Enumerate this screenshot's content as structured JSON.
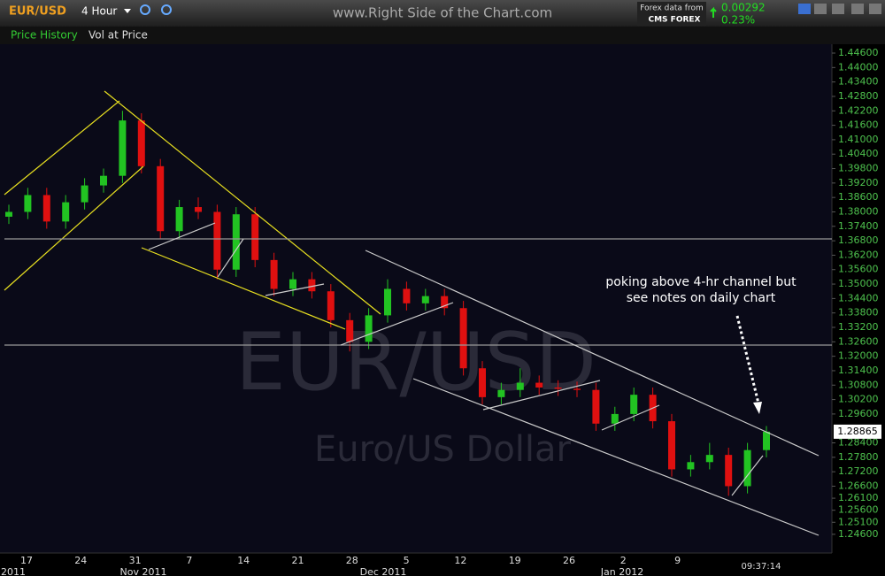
{
  "header": {
    "symbol": "EUR/USD",
    "interval": "4 Hour",
    "site": "www.Right Side of the Chart.com",
    "data_source": "Forex data from",
    "provider": "CMS FOREX",
    "change": "0.00292",
    "change_pct": "0.23%"
  },
  "toolbar": {
    "items": [
      "Price History",
      "Vol at Price"
    ]
  },
  "chart_data": {
    "type": "candlestick",
    "background_title": "EUR/USD",
    "background_subtitle": "Euro/US Dollar",
    "annotation": [
      "poking above 4-hr  channel but",
      "see notes on daily chart"
    ],
    "last_price": 1.28865,
    "time": "09:37:14",
    "xticks": [
      "17",
      "24",
      "31",
      "7",
      "14",
      "21",
      "28",
      "5",
      "12",
      "19",
      "26",
      "2",
      "9"
    ],
    "month_labels": [
      "2011",
      "Nov 2011",
      "Dec 2011",
      "Jan 2012"
    ],
    "up_color": "#22c322",
    "down_color": "#e01010",
    "open": [
      1.378,
      1.38,
      1.387,
      1.376,
      1.384,
      1.391,
      1.395,
      1.418,
      1.399,
      1.372,
      1.382,
      1.38,
      1.356,
      1.379,
      1.36,
      1.348,
      1.352,
      1.347,
      1.335,
      1.326,
      1.337,
      1.348,
      1.342,
      1.345,
      1.34,
      1.315,
      1.303,
      1.306,
      1.309,
      1.307,
      1.3065,
      1.306,
      1.292,
      1.296,
      1.304,
      1.293,
      1.273,
      1.276,
      1.279,
      1.266,
      1.281
    ],
    "high": [
      1.383,
      1.39,
      1.39,
      1.387,
      1.394,
      1.398,
      1.422,
      1.421,
      1.402,
      1.385,
      1.386,
      1.383,
      1.382,
      1.382,
      1.363,
      1.355,
      1.355,
      1.35,
      1.338,
      1.34,
      1.352,
      1.351,
      1.348,
      1.348,
      1.343,
      1.318,
      1.309,
      1.315,
      1.312,
      1.31,
      1.3095,
      1.309,
      1.299,
      1.307,
      1.307,
      1.296,
      1.279,
      1.284,
      1.282,
      1.284,
      1.291
    ],
    "low": [
      1.375,
      1.377,
      1.373,
      1.373,
      1.381,
      1.388,
      1.392,
      1.396,
      1.369,
      1.369,
      1.377,
      1.352,
      1.353,
      1.357,
      1.345,
      1.345,
      1.344,
      1.332,
      1.322,
      1.323,
      1.334,
      1.339,
      1.339,
      1.337,
      1.312,
      1.3,
      1.3,
      1.303,
      1.304,
      1.3035,
      1.303,
      1.289,
      1.289,
      1.293,
      1.29,
      1.27,
      1.27,
      1.273,
      1.262,
      1.263,
      1.278
    ],
    "close": [
      1.38,
      1.387,
      1.376,
      1.384,
      1.391,
      1.395,
      1.418,
      1.399,
      1.372,
      1.382,
      1.38,
      1.356,
      1.379,
      1.36,
      1.348,
      1.352,
      1.347,
      1.335,
      1.326,
      1.337,
      1.348,
      1.342,
      1.345,
      1.34,
      1.315,
      1.303,
      1.306,
      1.309,
      1.307,
      1.3065,
      1.306,
      1.292,
      1.296,
      1.304,
      1.293,
      1.273,
      1.276,
      1.279,
      1.266,
      1.281,
      1.28865
    ],
    "ylim": [
      1.23823,
      1.44968
    ],
    "yticks": [
      {
        "value": 1.446,
        "label": "1.44600"
      },
      {
        "value": 1.44,
        "label": "1.44000"
      },
      {
        "value": 1.434,
        "label": "1.43400"
      },
      {
        "value": 1.428,
        "label": "1.42800"
      },
      {
        "value": 1.422,
        "label": "1.42200"
      },
      {
        "value": 1.416,
        "label": "1.41600"
      },
      {
        "value": 1.41,
        "label": "1.41000"
      },
      {
        "value": 1.404,
        "label": "1.40400"
      },
      {
        "value": 1.398,
        "label": "1.39800"
      },
      {
        "value": 1.392,
        "label": "1.39200"
      },
      {
        "value": 1.386,
        "label": "1.38600"
      },
      {
        "value": 1.38,
        "label": "1.38000"
      },
      {
        "value": 1.374,
        "label": "1.37400"
      },
      {
        "value": 1.368,
        "label": "1.36800"
      },
      {
        "value": 1.362,
        "label": "1.36200"
      },
      {
        "value": 1.356,
        "label": "1.35600"
      },
      {
        "value": 1.35,
        "label": "1.35000"
      },
      {
        "value": 1.344,
        "label": "1.34400"
      },
      {
        "value": 1.338,
        "label": "1.33800"
      },
      {
        "value": 1.332,
        "label": "1.33200"
      },
      {
        "value": 1.326,
        "label": "1.32600"
      },
      {
        "value": 1.32,
        "label": "1.32000"
      },
      {
        "value": 1.314,
        "label": "1.31400"
      },
      {
        "value": 1.308,
        "label": "1.30800"
      },
      {
        "value": 1.302,
        "label": "1.30200"
      },
      {
        "value": 1.296,
        "label": "1.29600"
      },
      {
        "value": 1.284,
        "label": "1.28400"
      },
      {
        "value": 1.278,
        "label": "1.27800"
      },
      {
        "value": 1.272,
        "label": "1.27200"
      },
      {
        "value": 1.266,
        "label": "1.26600"
      },
      {
        "value": 1.261,
        "label": "1.26100"
      },
      {
        "value": 1.256,
        "label": "1.25600"
      },
      {
        "value": 1.251,
        "label": "1.25100"
      },
      {
        "value": 1.246,
        "label": "1.24600"
      }
    ]
  }
}
